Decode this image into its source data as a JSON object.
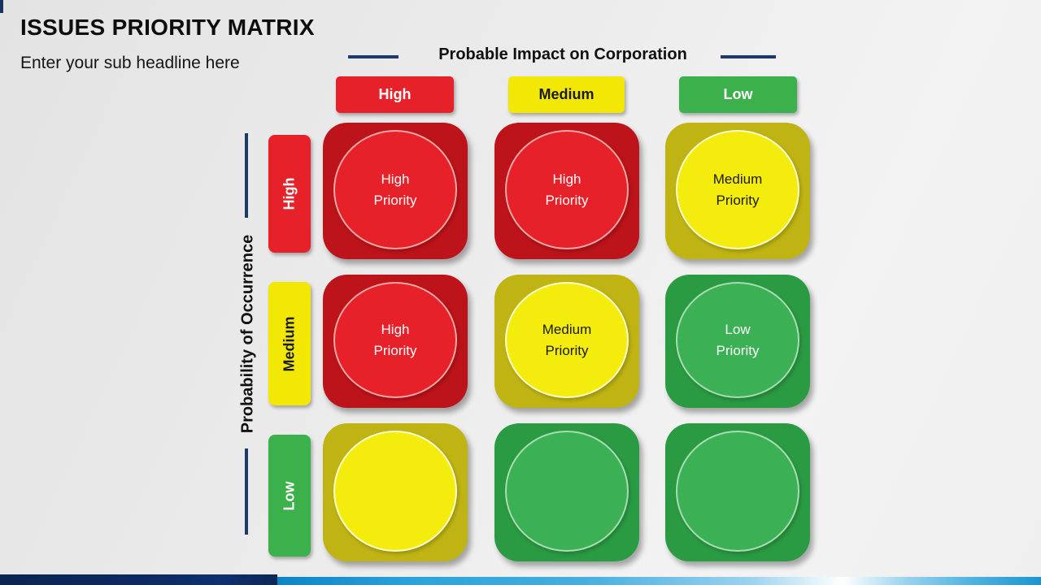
{
  "slide": {
    "title": "ISSUES PRIORITY MATRIX",
    "subtitle": "Enter your sub headline here"
  },
  "axes": {
    "impact_title": "Probable Impact on Corporation",
    "occurrence_title": "Probability of Occurrence"
  },
  "impact_headers": [
    {
      "label": "High",
      "bg": "#e62129",
      "fg": "#ffffff"
    },
    {
      "label": "Medium",
      "bg": "#f2e705",
      "fg": "#1a1a1a"
    },
    {
      "label": "Low",
      "bg": "#3cb04b",
      "fg": "#ffffff"
    }
  ],
  "occurrence_headers": [
    {
      "label": "High",
      "bg": "#e62129",
      "fg": "#ffffff"
    },
    {
      "label": "Medium",
      "bg": "#f2e705",
      "fg": "#1a1a1a"
    },
    {
      "label": "Low",
      "bg": "#3cb04b",
      "fg": "#ffffff"
    }
  ],
  "cells": [
    {
      "occurrence": "High",
      "impact": "High",
      "line1": "High",
      "line2": "Priority",
      "bg": "#bd141b",
      "circle": "#e62129",
      "ring": "#f2a7a4",
      "fg": "#ffffff"
    },
    {
      "occurrence": "High",
      "impact": "Medium",
      "line1": "High",
      "line2": "Priority",
      "bg": "#bd141b",
      "circle": "#e62129",
      "ring": "#f2a7a4",
      "fg": "#ffffff"
    },
    {
      "occurrence": "High",
      "impact": "Low",
      "line1": "Medium",
      "line2": "Priority",
      "bg": "#bfb414",
      "circle": "#f4ec0c",
      "ring": "#fdfbd0",
      "fg": "#1a1a1a"
    },
    {
      "occurrence": "Medium",
      "impact": "High",
      "line1": "High",
      "line2": "Priority",
      "bg": "#bd141b",
      "circle": "#e62129",
      "ring": "#f2a7a4",
      "fg": "#ffffff"
    },
    {
      "occurrence": "Medium",
      "impact": "Medium",
      "line1": "Medium",
      "line2": "Priority",
      "bg": "#bfb414",
      "circle": "#f4ec0c",
      "ring": "#fdfbd0",
      "fg": "#1a1a1a"
    },
    {
      "occurrence": "Medium",
      "impact": "Low",
      "line1": "Low",
      "line2": "Priority",
      "bg": "#2a9b43",
      "circle": "#3bb054",
      "ring": "#a8dcb2",
      "fg": "#ffffff"
    },
    {
      "occurrence": "Low",
      "impact": "High",
      "line1": "",
      "line2": "",
      "bg": "#bfb414",
      "circle": "#f4ec0c",
      "ring": "#fdfbd0",
      "fg": "#1a1a1a"
    },
    {
      "occurrence": "Low",
      "impact": "Medium",
      "line1": "",
      "line2": "",
      "bg": "#2a9b43",
      "circle": "#3bb054",
      "ring": "#a8dcb2",
      "fg": "#ffffff"
    },
    {
      "occurrence": "Low",
      "impact": "Low",
      "line1": "",
      "line2": "",
      "bg": "#2a9b43",
      "circle": "#3bb054",
      "ring": "#a8dcb2",
      "fg": "#ffffff"
    }
  ],
  "colors": {
    "accent_navy": "#1b3a69",
    "footer_navy": "#0c2a63",
    "footer_blue": "#1d94d0",
    "background_gray": "#ececec",
    "red_bright": "#e62129",
    "red_dark": "#bd141b",
    "yellow_bright": "#f4ec0c",
    "yellow_olive": "#bfb414",
    "green_bright": "#3bb054",
    "green_dark": "#2a9b43"
  }
}
